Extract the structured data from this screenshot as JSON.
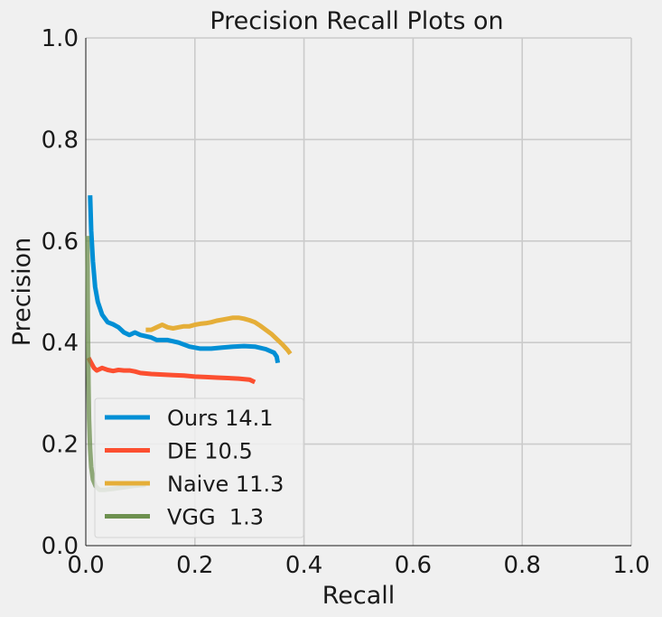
{
  "chart_data": {
    "type": "line",
    "title": "Precision Recall Plots on",
    "xlabel": "Recall",
    "ylabel": "Precision",
    "xlim": [
      0.0,
      1.0
    ],
    "ylim": [
      0.0,
      1.0
    ],
    "xticks": [
      "0.0",
      "0.2",
      "0.4",
      "0.6",
      "0.8",
      "1.0"
    ],
    "yticks": [
      "0.0",
      "0.2",
      "0.4",
      "0.6",
      "0.8",
      "1.0"
    ],
    "grid": true,
    "legend_position": "lower-left",
    "series": [
      {
        "name": "Ours 14.1",
        "color": "#008fd5",
        "points": [
          [
            0.008,
            0.69
          ],
          [
            0.01,
            0.62
          ],
          [
            0.013,
            0.56
          ],
          [
            0.017,
            0.51
          ],
          [
            0.022,
            0.48
          ],
          [
            0.03,
            0.455
          ],
          [
            0.04,
            0.44
          ],
          [
            0.05,
            0.436
          ],
          [
            0.06,
            0.43
          ],
          [
            0.07,
            0.42
          ],
          [
            0.08,
            0.415
          ],
          [
            0.09,
            0.42
          ],
          [
            0.1,
            0.415
          ],
          [
            0.12,
            0.41
          ],
          [
            0.13,
            0.405
          ],
          [
            0.15,
            0.405
          ],
          [
            0.17,
            0.4
          ],
          [
            0.19,
            0.392
          ],
          [
            0.21,
            0.388
          ],
          [
            0.23,
            0.388
          ],
          [
            0.25,
            0.39
          ],
          [
            0.27,
            0.392
          ],
          [
            0.29,
            0.393
          ],
          [
            0.31,
            0.392
          ],
          [
            0.33,
            0.387
          ],
          [
            0.345,
            0.38
          ],
          [
            0.35,
            0.372
          ],
          [
            0.352,
            0.36
          ]
        ]
      },
      {
        "name": "DE 10.5",
        "color": "#fc4f30",
        "points": [
          [
            0.005,
            0.37
          ],
          [
            0.01,
            0.36
          ],
          [
            0.015,
            0.35
          ],
          [
            0.02,
            0.345
          ],
          [
            0.03,
            0.35
          ],
          [
            0.04,
            0.346
          ],
          [
            0.05,
            0.344
          ],
          [
            0.06,
            0.346
          ],
          [
            0.07,
            0.345
          ],
          [
            0.08,
            0.345
          ],
          [
            0.09,
            0.343
          ],
          [
            0.1,
            0.34
          ],
          [
            0.12,
            0.338
          ],
          [
            0.14,
            0.337
          ],
          [
            0.16,
            0.336
          ],
          [
            0.18,
            0.335
          ],
          [
            0.2,
            0.333
          ],
          [
            0.22,
            0.332
          ],
          [
            0.24,
            0.331
          ],
          [
            0.26,
            0.33
          ],
          [
            0.28,
            0.329
          ],
          [
            0.3,
            0.327
          ],
          [
            0.31,
            0.322
          ]
        ]
      },
      {
        "name": "Naive 11.3",
        "color": "#e5ae38",
        "points": [
          [
            0.11,
            0.425
          ],
          [
            0.12,
            0.425
          ],
          [
            0.13,
            0.43
          ],
          [
            0.14,
            0.435
          ],
          [
            0.15,
            0.43
          ],
          [
            0.16,
            0.428
          ],
          [
            0.17,
            0.43
          ],
          [
            0.18,
            0.432
          ],
          [
            0.19,
            0.432
          ],
          [
            0.2,
            0.435
          ],
          [
            0.21,
            0.437
          ],
          [
            0.22,
            0.438
          ],
          [
            0.23,
            0.44
          ],
          [
            0.24,
            0.443
          ],
          [
            0.25,
            0.445
          ],
          [
            0.26,
            0.447
          ],
          [
            0.27,
            0.449
          ],
          [
            0.28,
            0.449
          ],
          [
            0.29,
            0.447
          ],
          [
            0.3,
            0.444
          ],
          [
            0.31,
            0.44
          ],
          [
            0.32,
            0.433
          ],
          [
            0.33,
            0.425
          ],
          [
            0.34,
            0.417
          ],
          [
            0.35,
            0.407
          ],
          [
            0.36,
            0.397
          ],
          [
            0.37,
            0.385
          ],
          [
            0.375,
            0.378
          ]
        ]
      },
      {
        "name": "VGG  1.3",
        "color": "#6d904f",
        "points": [
          [
            0.003,
            0.61
          ],
          [
            0.004,
            0.42
          ],
          [
            0.005,
            0.32
          ],
          [
            0.006,
            0.25
          ],
          [
            0.008,
            0.19
          ],
          [
            0.01,
            0.155
          ],
          [
            0.013,
            0.13
          ],
          [
            0.018,
            0.117
          ],
          [
            0.025,
            0.11
          ],
          [
            0.035,
            0.11
          ],
          [
            0.05,
            0.112
          ],
          [
            0.07,
            0.115
          ],
          [
            0.09,
            0.118
          ],
          [
            0.11,
            0.12
          ]
        ]
      }
    ]
  }
}
